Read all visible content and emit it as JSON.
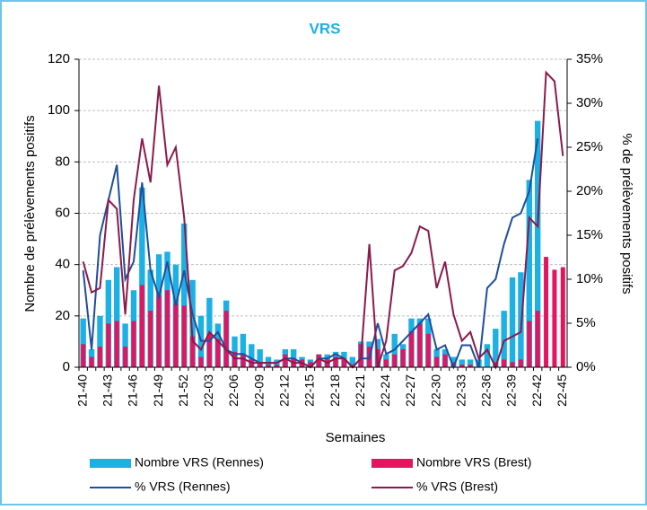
{
  "chart_data": {
    "type": "combo",
    "title": "VRS",
    "x_label": "Semaines",
    "y_label": "Nombre de prélèvements positifs",
    "y2_label": "% de prélèvements positifs",
    "categories": [
      "21-40",
      null,
      null,
      "21-43",
      null,
      null,
      "21-46",
      null,
      null,
      "21-49",
      null,
      null,
      "21-52",
      null,
      null,
      "22-03",
      null,
      null,
      "22-06",
      null,
      null,
      "22-09",
      null,
      null,
      "22-12",
      null,
      null,
      "22-15",
      null,
      null,
      "22-18",
      null,
      null,
      "22-21",
      null,
      null,
      "22-24",
      null,
      null,
      "22-27",
      null,
      null,
      "22-30",
      null,
      null,
      "22-33",
      null,
      null,
      "22-36",
      null,
      null,
      "22-39",
      null,
      null,
      "22-42",
      null,
      null,
      "22-45"
    ],
    "series": [
      {
        "name": "Nombre VRS (Rennes)",
        "type": "bar",
        "color": "#1cb0e4",
        "values": [
          19,
          7,
          20,
          34,
          39,
          17,
          30,
          70,
          38,
          44,
          45,
          40,
          56,
          34,
          20,
          27,
          17,
          26,
          12,
          13,
          9,
          7,
          4,
          3,
          7,
          7,
          4,
          3,
          5,
          5,
          6,
          6,
          4,
          10,
          10,
          11,
          5,
          13,
          9,
          19,
          19,
          19,
          7,
          7,
          4,
          3,
          3,
          3,
          9,
          15,
          22,
          35,
          37,
          73,
          96,
          null,
          null,
          null
        ]
      },
      {
        "name": "Nombre VRS (Brest)",
        "type": "bar",
        "color": "#e5145f",
        "values": [
          9,
          4,
          8,
          17,
          18,
          8,
          18,
          32,
          22,
          28,
          30,
          25,
          24,
          12,
          4,
          13,
          11,
          22,
          6,
          5,
          3,
          2,
          1,
          1,
          5,
          3,
          3,
          2,
          5,
          3,
          4,
          3,
          1,
          9,
          8,
          7,
          3,
          5,
          7,
          14,
          17,
          13,
          4,
          5,
          2,
          1,
          1,
          0,
          0,
          2,
          3,
          2,
          3,
          18,
          22,
          43,
          38,
          39
        ]
      },
      {
        "name": "% VRS (Rennes)",
        "type": "line",
        "axis": "y2",
        "color": "#1f4e9c",
        "values": [
          11,
          2,
          15,
          19,
          23,
          10,
          12,
          21,
          11,
          8,
          12,
          7,
          11,
          6,
          3,
          3,
          4,
          2,
          1.5,
          1.5,
          1,
          0.5,
          0.5,
          0.5,
          1,
          1,
          0.5,
          0,
          1,
          1,
          1.5,
          1,
          0,
          1,
          1,
          5,
          1.5,
          2,
          3,
          4,
          5,
          6,
          2,
          2.5,
          0,
          2.5,
          2.5,
          0,
          9,
          10,
          14,
          17,
          17.5,
          20,
          26,
          null,
          null,
          null
        ]
      },
      {
        "name": "% VRS (Brest)",
        "type": "line",
        "axis": "y2",
        "color": "#8b1a4b",
        "values": [
          12,
          8.5,
          9,
          19,
          18,
          6,
          19,
          26,
          21,
          32,
          23,
          25,
          17,
          3,
          2,
          4,
          3,
          2,
          1,
          1,
          0.5,
          0.5,
          0.5,
          0.5,
          1,
          0.5,
          0.5,
          0,
          1,
          0.5,
          1,
          1,
          0,
          1,
          14,
          0,
          3,
          11,
          11.5,
          13,
          16,
          15.5,
          9,
          12,
          6,
          3,
          4,
          1,
          2,
          0,
          3,
          3.5,
          4,
          17,
          16,
          33.5,
          32.5,
          24
        ]
      }
    ],
    "ylim": [
      0,
      120
    ],
    "yticks": [
      0,
      20,
      40,
      60,
      80,
      100,
      120
    ],
    "y2lim": [
      0,
      35
    ],
    "y2ticks": [
      {
        "value": 0,
        "label": "0%"
      },
      {
        "value": 5,
        "label": "5%"
      },
      {
        "value": 10,
        "label": "10%"
      },
      {
        "value": 15,
        "label": "15%"
      },
      {
        "value": 20,
        "label": "20%"
      },
      {
        "value": 25,
        "label": "25%"
      },
      {
        "value": 30,
        "label": "30%"
      },
      {
        "value": 35,
        "label": "35%"
      }
    ],
    "grid": true,
    "legend": "bottom"
  }
}
